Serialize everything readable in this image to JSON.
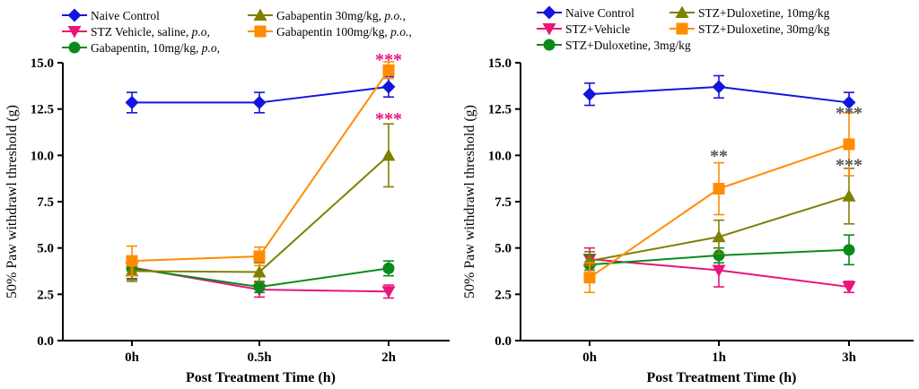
{
  "chart_data": [
    {
      "type": "line",
      "xlabel": "Post Treatment Time (h)",
      "ylabel": "50% Paw withdrawl threshold (g)",
      "categories": [
        "0h",
        "0.5h",
        "2h"
      ],
      "ylim": [
        0,
        15
      ],
      "yticks": [
        "0.0",
        "2.5",
        "5.0",
        "7.5",
        "10.0",
        "12.5",
        "15.0"
      ],
      "legend_position": "top",
      "series": [
        {
          "name": "Naive Control",
          "values": [
            12.85,
            12.85,
            13.7
          ],
          "errors": [
            0.55,
            0.55,
            0.55
          ],
          "color": "#1414e0",
          "marker": "diamond"
        },
        {
          "name": "STZ Vehicle, saline, p.o,",
          "values": [
            3.95,
            2.75,
            2.65
          ],
          "errors": [
            0.6,
            0.4,
            0.35
          ],
          "color": "#e8157a",
          "marker": "triangle-down"
        },
        {
          "name": "Gabapentin, 10mg/kg, p.o,",
          "values": [
            3.9,
            2.9,
            3.9
          ],
          "errors": [
            0.6,
            0.3,
            0.4
          ],
          "color": "#0a8a1a",
          "marker": "circle"
        },
        {
          "name": "Gabapentin 30mg/kg, p.o.,",
          "values": [
            3.75,
            3.7,
            10.0
          ],
          "errors": [
            0.55,
            0.5,
            1.7
          ],
          "color": "#808000",
          "marker": "triangle-up"
        },
        {
          "name": "Gabapentin 100mg/kg, p.o.,",
          "values": [
            4.3,
            4.55,
            14.6
          ],
          "errors": [
            0.8,
            0.5,
            0.45
          ],
          "color": "#ff8c00",
          "marker": "square"
        }
      ],
      "annotations": [
        {
          "text": "***",
          "x": "2h",
          "y": 15.3,
          "color": "#e8157a"
        },
        {
          "text": "***",
          "x": "2h",
          "y": 12.1,
          "color": "#e8157a"
        }
      ]
    },
    {
      "type": "line",
      "xlabel": "Post Treatment Time (h)",
      "ylabel": "50% Paw withdrawl threshold (g)",
      "categories": [
        "0h",
        "1h",
        "3h"
      ],
      "ylim": [
        0,
        15
      ],
      "yticks": [
        "0.0",
        "2.5",
        "5.0",
        "7.5",
        "10.0",
        "12.5",
        "15.0"
      ],
      "legend_position": "top",
      "series": [
        {
          "name": "Naive Control",
          "values": [
            13.3,
            13.7,
            12.85
          ],
          "errors": [
            0.6,
            0.6,
            0.55
          ],
          "color": "#1414e0",
          "marker": "diamond"
        },
        {
          "name": "STZ+Vehicle",
          "values": [
            4.4,
            3.8,
            2.9
          ],
          "errors": [
            0.6,
            0.9,
            0.3
          ],
          "color": "#e8157a",
          "marker": "triangle-down"
        },
        {
          "name": "STZ+Duloxetine, 3mg/kg",
          "values": [
            4.1,
            4.6,
            4.9
          ],
          "errors": [
            0.5,
            0.4,
            0.8
          ],
          "color": "#0a8a1a",
          "marker": "circle"
        },
        {
          "name": "STZ+Duloxetine, 10mg/kg",
          "values": [
            4.3,
            5.6,
            7.8
          ],
          "errors": [
            0.5,
            0.9,
            1.5
          ],
          "color": "#808000",
          "marker": "triangle-up"
        },
        {
          "name": "STZ+Duloxetine, 30mg/kg",
          "values": [
            3.4,
            8.2,
            10.6
          ],
          "errors": [
            0.8,
            1.4,
            1.7
          ],
          "color": "#ff8c00",
          "marker": "square"
        }
      ],
      "annotations": [
        {
          "text": "**",
          "x": "1h",
          "y": 10.1,
          "color": "#555555"
        },
        {
          "text": "***",
          "x": "3h",
          "y": 12.4,
          "color": "#555555"
        },
        {
          "text": "***",
          "x": "3h",
          "y": 9.6,
          "color": "#555555"
        }
      ]
    }
  ]
}
